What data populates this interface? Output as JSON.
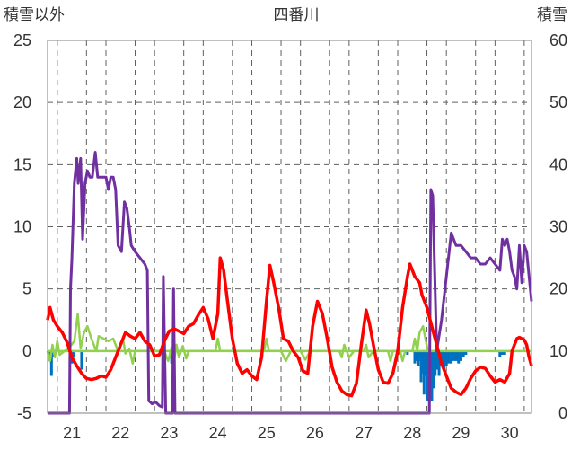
{
  "chart_data": {
    "type": "line",
    "title": "四番川",
    "ylabel_left": "積雪以外",
    "ylabel_right": "積雪",
    "x_ticks": [
      "21",
      "22",
      "23",
      "24",
      "25",
      "26",
      "27",
      "28",
      "29",
      "30"
    ],
    "xlim": [
      20.5,
      30.45
    ],
    "ylim_left": [
      -5,
      25
    ],
    "yticks_left": [
      -5,
      0,
      5,
      10,
      15,
      20,
      25
    ],
    "ylim_right": [
      0,
      60
    ],
    "yticks_right": [
      0,
      10,
      20,
      30,
      40,
      50,
      60
    ],
    "grid": "dashed",
    "colors": {
      "temperature": "#ff0000",
      "snow_depth": "#7030a0",
      "green_series": "#92d050",
      "precip_bars": "#0070c0",
      "zero_line": "#92d050",
      "grid": "#606060"
    },
    "series_red": [
      [
        20.5,
        2.5
      ],
      [
        20.55,
        3.5
      ],
      [
        20.62,
        2.5
      ],
      [
        20.7,
        2.0
      ],
      [
        20.8,
        1.5
      ],
      [
        20.9,
        0.7
      ],
      [
        21.0,
        -0.5
      ],
      [
        21.1,
        -1.2
      ],
      [
        21.2,
        -1.8
      ],
      [
        21.3,
        -2.2
      ],
      [
        21.4,
        -2.3
      ],
      [
        21.5,
        -2.2
      ],
      [
        21.6,
        -2.0
      ],
      [
        21.7,
        -2.1
      ],
      [
        21.8,
        -1.5
      ],
      [
        21.9,
        -0.5
      ],
      [
        22.0,
        0.5
      ],
      [
        22.1,
        1.5
      ],
      [
        22.2,
        1.2
      ],
      [
        22.3,
        1.0
      ],
      [
        22.4,
        1.5
      ],
      [
        22.5,
        0.8
      ],
      [
        22.6,
        0.5
      ],
      [
        22.7,
        -0.4
      ],
      [
        22.8,
        -0.3
      ],
      [
        22.9,
        0.8
      ],
      [
        23.0,
        1.6
      ],
      [
        23.1,
        1.8
      ],
      [
        23.2,
        1.6
      ],
      [
        23.3,
        1.4
      ],
      [
        23.4,
        2.0
      ],
      [
        23.5,
        2.2
      ],
      [
        23.6,
        2.9
      ],
      [
        23.7,
        3.5
      ],
      [
        23.8,
        2.6
      ],
      [
        23.9,
        1.0
      ],
      [
        24.0,
        3.0
      ],
      [
        24.05,
        7.5
      ],
      [
        24.12,
        6.5
      ],
      [
        24.2,
        4.0
      ],
      [
        24.3,
        1.0
      ],
      [
        24.4,
        -1.0
      ],
      [
        24.5,
        -1.8
      ],
      [
        24.6,
        -1.5
      ],
      [
        24.7,
        -2.0
      ],
      [
        24.8,
        -2.3
      ],
      [
        24.9,
        -0.5
      ],
      [
        25.0,
        4.0
      ],
      [
        25.07,
        6.9
      ],
      [
        25.15,
        5.5
      ],
      [
        25.25,
        3.5
      ],
      [
        25.35,
        1.0
      ],
      [
        25.45,
        0.8
      ],
      [
        25.55,
        0.0
      ],
      [
        25.65,
        -0.5
      ],
      [
        25.75,
        -1.6
      ],
      [
        25.85,
        -1.8
      ],
      [
        25.95,
        2.0
      ],
      [
        26.05,
        4.0
      ],
      [
        26.15,
        3.0
      ],
      [
        26.25,
        1.0
      ],
      [
        26.35,
        -1.3
      ],
      [
        26.45,
        -2.5
      ],
      [
        26.55,
        -3.2
      ],
      [
        26.65,
        -3.5
      ],
      [
        26.75,
        -3.6
      ],
      [
        26.85,
        -2.6
      ],
      [
        26.95,
        0.5
      ],
      [
        27.05,
        3.3
      ],
      [
        27.12,
        2.2
      ],
      [
        27.2,
        0.5
      ],
      [
        27.3,
        -1.5
      ],
      [
        27.4,
        -2.5
      ],
      [
        27.5,
        -2.6
      ],
      [
        27.6,
        -1.8
      ],
      [
        27.7,
        0.0
      ],
      [
        27.8,
        3.5
      ],
      [
        27.9,
        6.0
      ],
      [
        27.95,
        7.0
      ],
      [
        28.05,
        6.0
      ],
      [
        28.15,
        5.5
      ],
      [
        28.2,
        4.5
      ],
      [
        28.3,
        3.5
      ],
      [
        28.4,
        2.0
      ],
      [
        28.5,
        0.5
      ],
      [
        28.6,
        -1.0
      ],
      [
        28.7,
        -2.0
      ],
      [
        28.8,
        -3.0
      ],
      [
        28.9,
        -3.3
      ],
      [
        29.0,
        -3.5
      ],
      [
        29.1,
        -3.0
      ],
      [
        29.2,
        -2.2
      ],
      [
        29.3,
        -1.6
      ],
      [
        29.4,
        -1.3
      ],
      [
        29.5,
        -1.4
      ],
      [
        29.6,
        -2.0
      ],
      [
        29.7,
        -2.5
      ],
      [
        29.8,
        -2.3
      ],
      [
        29.9,
        -2.5
      ],
      [
        30.0,
        -1.8
      ],
      [
        30.05,
        0.0
      ],
      [
        30.1,
        0.5
      ],
      [
        30.15,
        1.0
      ],
      [
        30.2,
        1.1
      ],
      [
        30.25,
        1.0
      ],
      [
        30.3,
        0.9
      ],
      [
        30.35,
        0.5
      ],
      [
        30.4,
        -0.5
      ],
      [
        30.45,
        -1.2
      ]
    ],
    "series_purple": [
      [
        20.5,
        0
      ],
      [
        20.95,
        0
      ],
      [
        20.97,
        20
      ],
      [
        21.0,
        25
      ],
      [
        21.05,
        37
      ],
      [
        21.1,
        41
      ],
      [
        21.13,
        37
      ],
      [
        21.18,
        41
      ],
      [
        21.22,
        28
      ],
      [
        21.27,
        37
      ],
      [
        21.32,
        39
      ],
      [
        21.37,
        38
      ],
      [
        21.42,
        38
      ],
      [
        21.48,
        42
      ],
      [
        21.53,
        38
      ],
      [
        21.6,
        38
      ],
      [
        21.7,
        38
      ],
      [
        21.75,
        36
      ],
      [
        21.8,
        38
      ],
      [
        21.85,
        38
      ],
      [
        21.9,
        36
      ],
      [
        21.95,
        27
      ],
      [
        22.02,
        26
      ],
      [
        22.08,
        34
      ],
      [
        22.13,
        33
      ],
      [
        22.18,
        30
      ],
      [
        22.22,
        27
      ],
      [
        22.3,
        26
      ],
      [
        22.4,
        25
      ],
      [
        22.5,
        24
      ],
      [
        22.55,
        23
      ],
      [
        22.58,
        2
      ],
      [
        22.65,
        1.5
      ],
      [
        22.72,
        1.8
      ],
      [
        22.8,
        1.2
      ],
      [
        22.86,
        1.0
      ],
      [
        22.88,
        22
      ],
      [
        22.93,
        0
      ],
      [
        23.0,
        0
      ],
      [
        23.07,
        0
      ],
      [
        23.09,
        20
      ],
      [
        23.12,
        0
      ],
      [
        28.35,
        0
      ],
      [
        28.38,
        36
      ],
      [
        28.42,
        35
      ],
      [
        28.5,
        10
      ],
      [
        28.6,
        15
      ],
      [
        28.7,
        22
      ],
      [
        28.8,
        29
      ],
      [
        28.9,
        27
      ],
      [
        29.0,
        27
      ],
      [
        29.1,
        26
      ],
      [
        29.2,
        25
      ],
      [
        29.3,
        25
      ],
      [
        29.4,
        24
      ],
      [
        29.5,
        24
      ],
      [
        29.6,
        25
      ],
      [
        29.7,
        24
      ],
      [
        29.8,
        23
      ],
      [
        29.85,
        28
      ],
      [
        29.9,
        27
      ],
      [
        29.95,
        28
      ],
      [
        30.0,
        26
      ],
      [
        30.05,
        23
      ],
      [
        30.1,
        22
      ],
      [
        30.15,
        20
      ],
      [
        30.2,
        27
      ],
      [
        30.25,
        21
      ],
      [
        30.3,
        27
      ],
      [
        30.35,
        26
      ],
      [
        30.4,
        22
      ],
      [
        30.45,
        18
      ]
    ],
    "series_green": [
      [
        20.5,
        0
      ],
      [
        20.55,
        -0.8
      ],
      [
        20.6,
        0.5
      ],
      [
        20.65,
        -0.5
      ],
      [
        20.7,
        0.8
      ],
      [
        20.75,
        -0.3
      ],
      [
        20.85,
        0
      ],
      [
        20.95,
        0.3
      ],
      [
        21.05,
        0.8
      ],
      [
        21.12,
        3.0
      ],
      [
        21.18,
        0.2
      ],
      [
        21.25,
        1.5
      ],
      [
        21.32,
        2.0
      ],
      [
        21.4,
        1.0
      ],
      [
        21.5,
        0
      ],
      [
        21.55,
        1.2
      ],
      [
        21.65,
        1.0
      ],
      [
        21.75,
        0.8
      ],
      [
        21.85,
        1.0
      ],
      [
        21.95,
        0
      ],
      [
        22.05,
        1.0
      ],
      [
        22.1,
        -0.2
      ],
      [
        22.18,
        0.2
      ],
      [
        22.25,
        -1.0
      ],
      [
        22.3,
        0
      ],
      [
        22.4,
        0
      ],
      [
        22.9,
        0
      ],
      [
        22.98,
        -0.8
      ],
      [
        23.05,
        0.3
      ],
      [
        23.1,
        -0.8
      ],
      [
        23.15,
        0.5
      ],
      [
        23.2,
        -0.5
      ],
      [
        23.28,
        0.4
      ],
      [
        23.35,
        -0.6
      ],
      [
        23.4,
        0
      ],
      [
        23.95,
        0
      ],
      [
        24.0,
        1.0
      ],
      [
        24.05,
        0
      ],
      [
        24.95,
        0
      ],
      [
        25.0,
        1.0
      ],
      [
        25.05,
        0
      ],
      [
        25.3,
        0
      ],
      [
        25.4,
        -0.8
      ],
      [
        25.5,
        0
      ],
      [
        25.7,
        0
      ],
      [
        25.8,
        -0.7
      ],
      [
        25.9,
        0
      ],
      [
        26.5,
        0
      ],
      [
        26.55,
        -0.5
      ],
      [
        26.6,
        0.5
      ],
      [
        26.7,
        -0.5
      ],
      [
        26.8,
        0
      ],
      [
        27.0,
        0
      ],
      [
        27.05,
        0.5
      ],
      [
        27.1,
        -0.5
      ],
      [
        27.2,
        0
      ],
      [
        27.5,
        0
      ],
      [
        27.55,
        -0.8
      ],
      [
        27.6,
        0
      ],
      [
        27.75,
        0
      ],
      [
        27.8,
        -0.8
      ],
      [
        27.85,
        0
      ],
      [
        28.0,
        0
      ],
      [
        28.05,
        1.0
      ],
      [
        28.1,
        0
      ],
      [
        28.15,
        1.5
      ],
      [
        28.22,
        2.0
      ],
      [
        28.28,
        0.8
      ],
      [
        28.32,
        0
      ],
      [
        28.45,
        0
      ]
    ],
    "bars_blue": [
      [
        20.55,
        -0.8
      ],
      [
        20.58,
        -2.0
      ],
      [
        20.62,
        -0.5
      ],
      [
        21.0,
        -1.0
      ],
      [
        21.03,
        -0.5
      ],
      [
        21.2,
        -1.5
      ],
      [
        22.3,
        -0.3
      ],
      [
        23.05,
        -1.0
      ],
      [
        23.08,
        -0.5
      ],
      [
        27.75,
        -0.3
      ],
      [
        27.9,
        -0.3
      ],
      [
        28.05,
        -1.0
      ],
      [
        28.08,
        -0.8
      ],
      [
        28.12,
        -1.2
      ],
      [
        28.15,
        -0.8
      ],
      [
        28.18,
        -2.5
      ],
      [
        28.21,
        -1.8
      ],
      [
        28.24,
        -3.5
      ],
      [
        28.27,
        -2.0
      ],
      [
        28.3,
        -4.0
      ],
      [
        28.33,
        -3.0
      ],
      [
        28.36,
        -3.6
      ],
      [
        28.4,
        -4.0
      ],
      [
        28.43,
        -3.0
      ],
      [
        28.47,
        -2.0
      ],
      [
        28.5,
        -1.5
      ],
      [
        28.55,
        -2.0
      ],
      [
        28.6,
        -1.0
      ],
      [
        28.65,
        -1.5
      ],
      [
        28.7,
        -1.2
      ],
      [
        28.75,
        -1.0
      ],
      [
        28.8,
        -1.0
      ],
      [
        28.85,
        -0.8
      ],
      [
        28.9,
        -0.8
      ],
      [
        28.95,
        -1.0
      ],
      [
        29.0,
        -0.8
      ],
      [
        29.05,
        -0.5
      ],
      [
        29.1,
        -0.3
      ],
      [
        29.8,
        -0.5
      ],
      [
        29.85,
        -0.3
      ],
      [
        29.9,
        -0.3
      ]
    ]
  }
}
